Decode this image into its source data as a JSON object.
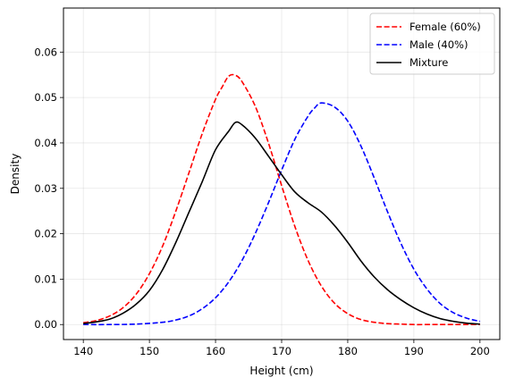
{
  "chart_data": {
    "type": "line",
    "title": "",
    "xlabel": "Height (cm)",
    "ylabel": "Density",
    "xlim": [
      137,
      203
    ],
    "ylim": [
      -0.0033,
      0.0697
    ],
    "xticks": [
      140,
      150,
      160,
      170,
      180,
      190,
      200
    ],
    "xtick_labels": [
      "140",
      "150",
      "160",
      "170",
      "180",
      "190",
      "200"
    ],
    "yticks": [
      0.0,
      0.01,
      0.02,
      0.03,
      0.04,
      0.05,
      0.06
    ],
    "ytick_labels": [
      "0.00",
      "0.01",
      "0.02",
      "0.03",
      "0.04",
      "0.05",
      "0.06"
    ],
    "grid": true,
    "legend_position": "top-right",
    "series": [
      {
        "name": "Female (60%)",
        "color": "#ff0000",
        "style": "dashed",
        "x": [
          140,
          142,
          144,
          146,
          148,
          150,
          152,
          154,
          156,
          158,
          160,
          161,
          162,
          163,
          164,
          166,
          168,
          170,
          172,
          174,
          176,
          178,
          180,
          182,
          184,
          186,
          188,
          190,
          192,
          194,
          196,
          198,
          200
        ],
        "y": [
          0.0004,
          0.0009,
          0.0019,
          0.0037,
          0.0067,
          0.0112,
          0.0173,
          0.025,
          0.0335,
          0.0421,
          0.0496,
          0.0523,
          0.0547,
          0.0549,
          0.0535,
          0.0481,
          0.04,
          0.0306,
          0.0216,
          0.0141,
          0.0085,
          0.0047,
          0.0024,
          0.0011,
          0.0005,
          0.0002,
          0.0001,
          0.0,
          0.0,
          0.0,
          0.0,
          0.0,
          0.0
        ]
      },
      {
        "name": "Male (40%)",
        "color": "#0000ff",
        "style": "dashed",
        "x": [
          140,
          144,
          148,
          152,
          154,
          156,
          158,
          160,
          162,
          164,
          166,
          168,
          170,
          172,
          174,
          175,
          176,
          178,
          180,
          182,
          184,
          186,
          188,
          190,
          192,
          194,
          196,
          198,
          200
        ],
        "y": [
          0.0,
          0.0,
          0.0001,
          0.0005,
          0.001,
          0.0019,
          0.0035,
          0.0059,
          0.0094,
          0.0141,
          0.02,
          0.0268,
          0.034,
          0.0408,
          0.0459,
          0.0477,
          0.0488,
          0.0479,
          0.0448,
          0.0393,
          0.0323,
          0.0249,
          0.018,
          0.0122,
          0.0078,
          0.0046,
          0.0026,
          0.0014,
          0.0007
        ]
      },
      {
        "name": "Mixture",
        "color": "#000000",
        "style": "solid",
        "x": [
          140,
          142,
          144,
          146,
          148,
          150,
          152,
          154,
          156,
          158,
          160,
          162,
          163,
          164,
          166,
          168,
          170,
          172,
          174,
          176,
          178,
          180,
          182,
          184,
          186,
          188,
          190,
          192,
          194,
          196,
          198,
          200
        ],
        "y": [
          0.0002,
          0.0006,
          0.0012,
          0.0025,
          0.0045,
          0.0075,
          0.0121,
          0.0181,
          0.0248,
          0.0315,
          0.0385,
          0.0426,
          0.0445,
          0.044,
          0.0411,
          0.0371,
          0.033,
          0.0292,
          0.0268,
          0.0248,
          0.0218,
          0.0181,
          0.014,
          0.0105,
          0.0077,
          0.0055,
          0.0037,
          0.0023,
          0.0013,
          0.0007,
          0.0003,
          0.0001
        ]
      }
    ]
  }
}
